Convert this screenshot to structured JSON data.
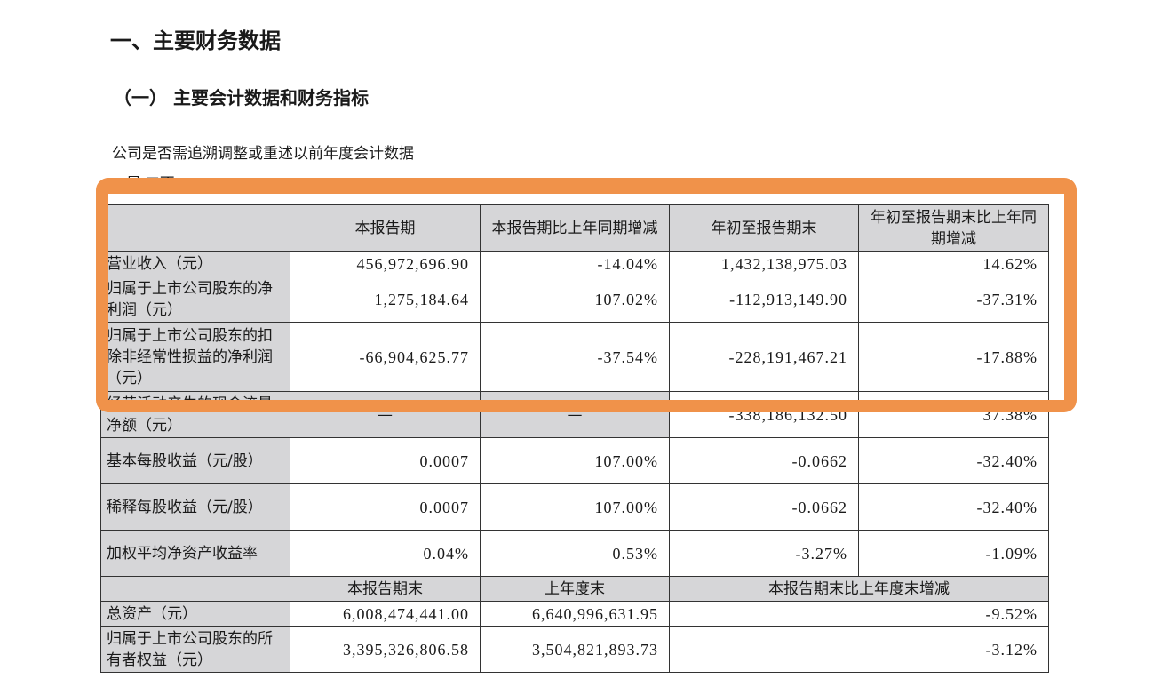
{
  "title": "一、主要财务数据",
  "subtitle": "（一） 主要会计数据和财务指标",
  "question": "公司是否需追溯调整或重述以前年度会计数据",
  "answer": "□是 ☑否",
  "highlight_color": "#f0924a",
  "header": [
    "",
    "本报告期",
    "本报告期比上年同期增减",
    "年初至报告期末",
    "年初至报告期末比上年同期增减"
  ],
  "rows": [
    {
      "label": "营业收入（元）",
      "v": [
        "456,972,696.90",
        "-14.04%",
        "1,432,138,975.03",
        "14.62%"
      ]
    },
    {
      "label": "归属于上市公司股东的净利润（元）",
      "v": [
        "1,275,184.64",
        "107.02%",
        "-112,913,149.90",
        "-37.31%"
      ]
    },
    {
      "label": "归属于上市公司股东的扣除非经常性损益的净利润（元）",
      "v": [
        "-66,904,625.77",
        "-37.54%",
        "-228,191,467.21",
        "-17.88%"
      ]
    },
    {
      "label": "经营活动产生的现金流量净额（元）",
      "v": [
        "—",
        "—",
        "-338,186,132.50",
        "37.38%"
      ]
    },
    {
      "label": "基本每股收益（元/股）",
      "v": [
        "0.0007",
        "107.00%",
        "-0.0662",
        "-32.40%"
      ]
    },
    {
      "label": "稀释每股收益（元/股）",
      "v": [
        "0.0007",
        "107.00%",
        "-0.0662",
        "-32.40%"
      ]
    },
    {
      "label": "加权平均净资产收益率",
      "v": [
        "0.04%",
        "0.53%",
        "-3.27%",
        "-1.09%"
      ]
    }
  ],
  "header2": [
    "",
    "本报告期末",
    "上年度末",
    "本报告期末比上年度末增减"
  ],
  "rows2": [
    {
      "label": "总资产（元）",
      "v": [
        "6,008,474,441.00",
        "6,640,996,631.95",
        "-9.52%"
      ]
    },
    {
      "label": "归属于上市公司股东的所有者权益（元）",
      "v": [
        "3,395,326,806.58",
        "3,504,821,893.73",
        "-3.12%"
      ]
    }
  ]
}
